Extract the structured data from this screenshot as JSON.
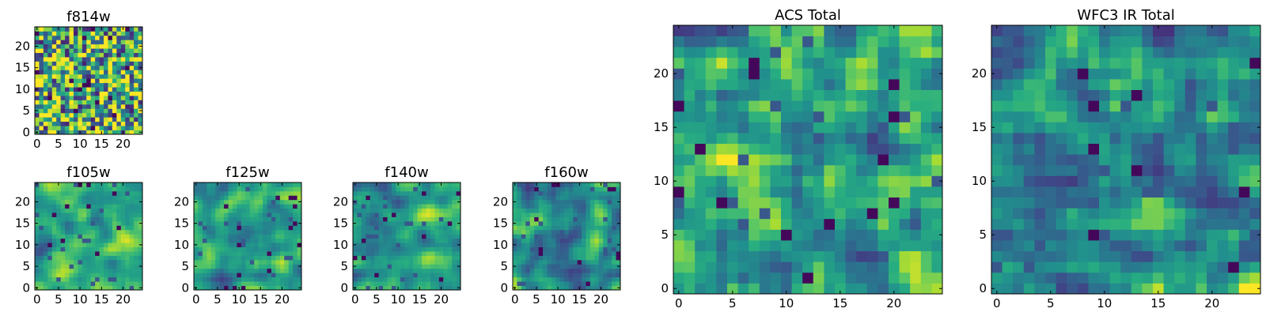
{
  "chart_data": [
    {
      "type": "heatmap",
      "title": "f814w",
      "size": 25,
      "xticks": [
        0,
        5,
        10,
        15,
        20
      ],
      "yticks": [
        0,
        5,
        10,
        15,
        20
      ],
      "xlim": [
        -0.5,
        24.5
      ],
      "ylim": [
        -0.5,
        24.5
      ],
      "colormap": "viridis",
      "seed": 814,
      "smooth": 0,
      "noise": 0.55,
      "bias": 0.1
    },
    {
      "type": "heatmap",
      "title": "f105w",
      "size": 25,
      "xticks": [
        0,
        5,
        10,
        15,
        20
      ],
      "yticks": [
        0,
        5,
        10,
        15,
        20
      ],
      "xlim": [
        -0.5,
        24.5
      ],
      "ylim": [
        -0.5,
        24.5
      ],
      "colormap": "viridis",
      "seed": 105,
      "smooth": 2,
      "noise": 0.35,
      "bias": 0.05
    },
    {
      "type": "heatmap",
      "title": "f125w",
      "size": 25,
      "xticks": [
        0,
        5,
        10,
        15,
        20
      ],
      "yticks": [
        0,
        5,
        10,
        15,
        20
      ],
      "xlim": [
        -0.5,
        24.5
      ],
      "ylim": [
        -0.5,
        24.5
      ],
      "colormap": "viridis",
      "seed": 125,
      "smooth": 2,
      "noise": 0.35,
      "bias": 0.0
    },
    {
      "type": "heatmap",
      "title": "f140w",
      "size": 25,
      "xticks": [
        0,
        5,
        10,
        15,
        20
      ],
      "yticks": [
        0,
        5,
        10,
        15,
        20
      ],
      "xlim": [
        -0.5,
        24.5
      ],
      "ylim": [
        -0.5,
        24.5
      ],
      "colormap": "viridis",
      "seed": 140,
      "smooth": 2,
      "noise": 0.35,
      "bias": 0.05
    },
    {
      "type": "heatmap",
      "title": "f160w",
      "size": 25,
      "xticks": [
        0,
        5,
        10,
        15,
        20
      ],
      "yticks": [
        0,
        5,
        10,
        15,
        20
      ],
      "xlim": [
        -0.5,
        24.5
      ],
      "ylim": [
        -0.5,
        24.5
      ],
      "colormap": "viridis",
      "seed": 160,
      "smooth": 2,
      "noise": 0.35,
      "bias": -0.02
    },
    {
      "type": "heatmap",
      "title": "ACS Total",
      "size": 25,
      "xticks": [
        0,
        5,
        10,
        15,
        20
      ],
      "yticks": [
        0,
        5,
        10,
        15,
        20
      ],
      "xlim": [
        -0.5,
        24.5
      ],
      "ylim": [
        -0.5,
        24.5
      ],
      "colormap": "viridis",
      "seed": 901,
      "smooth": 1,
      "noise": 0.45,
      "bias": 0.08
    },
    {
      "type": "heatmap",
      "title": "WFC3 IR Total",
      "size": 25,
      "xticks": [
        0,
        5,
        10,
        15,
        20
      ],
      "yticks": [
        0,
        5,
        10,
        15,
        20
      ],
      "xlim": [
        -0.5,
        24.5
      ],
      "ylim": [
        -0.5,
        24.5
      ],
      "colormap": "viridis",
      "seed": 902,
      "smooth": 1,
      "noise": 0.45,
      "bias": 0.05
    }
  ]
}
